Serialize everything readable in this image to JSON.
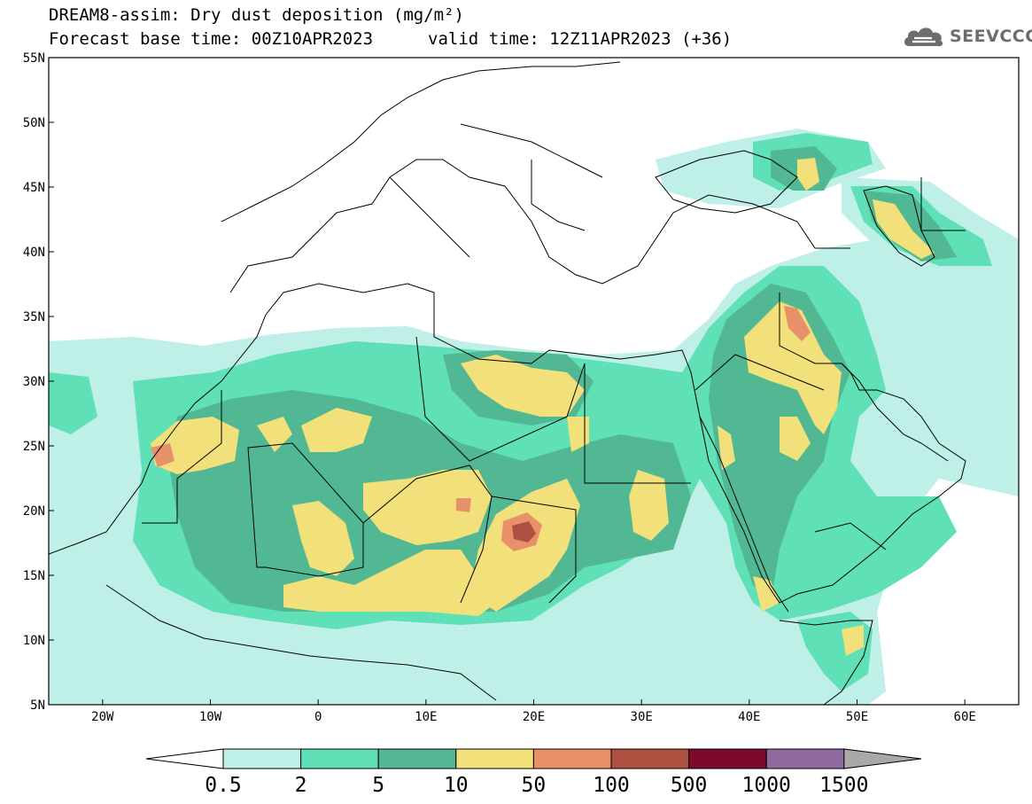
{
  "header": {
    "title": "DREAM8-assim: Dry dust deposition (mg/m²)",
    "base_time": "Forecast base time: 00Z10APR2023",
    "valid_time": "valid time: 12Z11APR2023 (+36)",
    "logo_text": "SEEVCCC",
    "logo_icon": "cloud-icon"
  },
  "map": {
    "lon_range": [
      -25,
      65
    ],
    "lat_range": [
      5,
      55
    ],
    "lat_ticks": [
      {
        "value": 55,
        "label": "55N"
      },
      {
        "value": 50,
        "label": "50N"
      },
      {
        "value": 45,
        "label": "45N"
      },
      {
        "value": 40,
        "label": "40N"
      },
      {
        "value": 35,
        "label": "35N"
      },
      {
        "value": 30,
        "label": "30N"
      },
      {
        "value": 25,
        "label": "25N"
      },
      {
        "value": 20,
        "label": "20N"
      },
      {
        "value": 15,
        "label": "15N"
      },
      {
        "value": 10,
        "label": "10N"
      },
      {
        "value": 5,
        "label": "5N"
      }
    ],
    "lon_ticks": [
      {
        "value": -20,
        "label": "20W"
      },
      {
        "value": -10,
        "label": "10W"
      },
      {
        "value": 0,
        "label": "0"
      },
      {
        "value": 10,
        "label": "10E"
      },
      {
        "value": 20,
        "label": "20E"
      },
      {
        "value": 30,
        "label": "30E"
      },
      {
        "value": 40,
        "label": "40E"
      },
      {
        "value": 50,
        "label": "50E"
      },
      {
        "value": 60,
        "label": "60E"
      }
    ]
  },
  "colorbar": {
    "labels": [
      "0.5",
      "2",
      "5",
      "10",
      "50",
      "100",
      "500",
      "1000",
      "1500"
    ],
    "colors": [
      "#bff0e8",
      "#5fe0b6",
      "#52b893",
      "#f2e07a",
      "#e8906a",
      "#ad5040",
      "#7d0a2a",
      "#8e6aa0"
    ],
    "left_cap": "#ffffff",
    "right_cap": "#a8a8a8"
  },
  "dust_colors": {
    "c1": "#bff0e8",
    "c2": "#5fe0b6",
    "c3": "#52b893",
    "c4": "#f2e07a",
    "c5": "#e8906a",
    "c6": "#ad5040"
  }
}
